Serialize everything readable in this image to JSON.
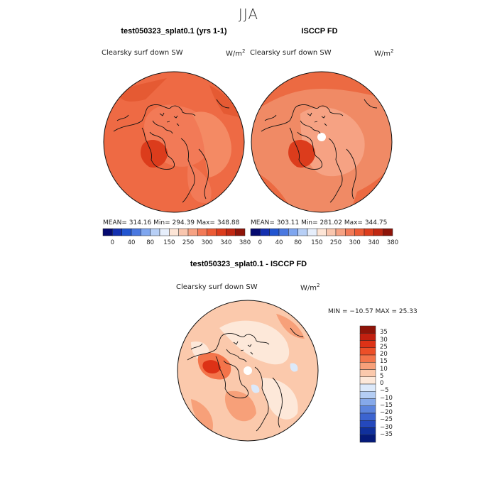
{
  "season": "JJA",
  "left_panel": {
    "title": "test050323_splat0.1 (yrs 1-1)",
    "variable": "Clearsky surf down SW",
    "units": "W/m",
    "units_sup": "2",
    "stats": "MEAN= 314.16   Min= 294.39   Max= 348.88"
  },
  "right_panel": {
    "title": "ISCCP FD",
    "variable": "Clearsky surf down SW",
    "units": "W/m",
    "units_sup": "2",
    "stats": "MEAN= 303.11   Min= 281.02   Max= 344.75"
  },
  "top_colorbar": {
    "tick_labels": [
      "0",
      "40",
      "80",
      "150",
      "250",
      "300",
      "340",
      "380"
    ],
    "colors": [
      "#050a70",
      "#1430b0",
      "#2255d0",
      "#4a78e0",
      "#7fa6ef",
      "#b7cff6",
      "#e6eefb",
      "#fde5d6",
      "#f9c6ae",
      "#f6a283",
      "#f27a57",
      "#ec5b35",
      "#dc3c1c",
      "#c02812",
      "#8e1409"
    ]
  },
  "diff_panel": {
    "title": "test050323_splat0.1 - ISCCP FD",
    "variable": "Clearsky surf down SW",
    "units": "W/m",
    "units_sup": "2",
    "stats": "MIN = −10.57 MAX =  25.33"
  },
  "diff_colorbar": {
    "levels": [
      "35",
      "30",
      "25",
      "20",
      "15",
      "10",
      "5",
      "0",
      "−5",
      "−10",
      "−15",
      "−20",
      "−25",
      "−30",
      "−35"
    ],
    "colors": [
      "#8e1409",
      "#c22010",
      "#dd3216",
      "#ec4f28",
      "#f3744a",
      "#f7a079",
      "#fbc9ac",
      "#fde8d9",
      "#dce9fa",
      "#b4cdf3",
      "#86a9ea",
      "#5c84dd",
      "#3c64d0",
      "#2448bc",
      "#10309c",
      "#051a7a"
    ]
  },
  "chart_data": [
    {
      "type": "heatmap",
      "title": "test050323_splat0.1 (yrs 1-1)",
      "projection": "north polar stereographic",
      "variable": "Clearsky surf down SW",
      "units": "W/m2",
      "mean": 314.16,
      "min": 294.39,
      "max": 348.88
    },
    {
      "type": "heatmap",
      "title": "ISCCP FD",
      "projection": "north polar stereographic",
      "variable": "Clearsky surf down SW",
      "units": "W/m2",
      "mean": 303.11,
      "min": 281.02,
      "max": 344.75
    },
    {
      "type": "heatmap",
      "title": "test050323_splat0.1 - ISCCP FD",
      "projection": "north polar stereographic",
      "variable": "Clearsky surf down SW",
      "units": "W/m2",
      "min": -10.57,
      "max": 25.33
    }
  ]
}
